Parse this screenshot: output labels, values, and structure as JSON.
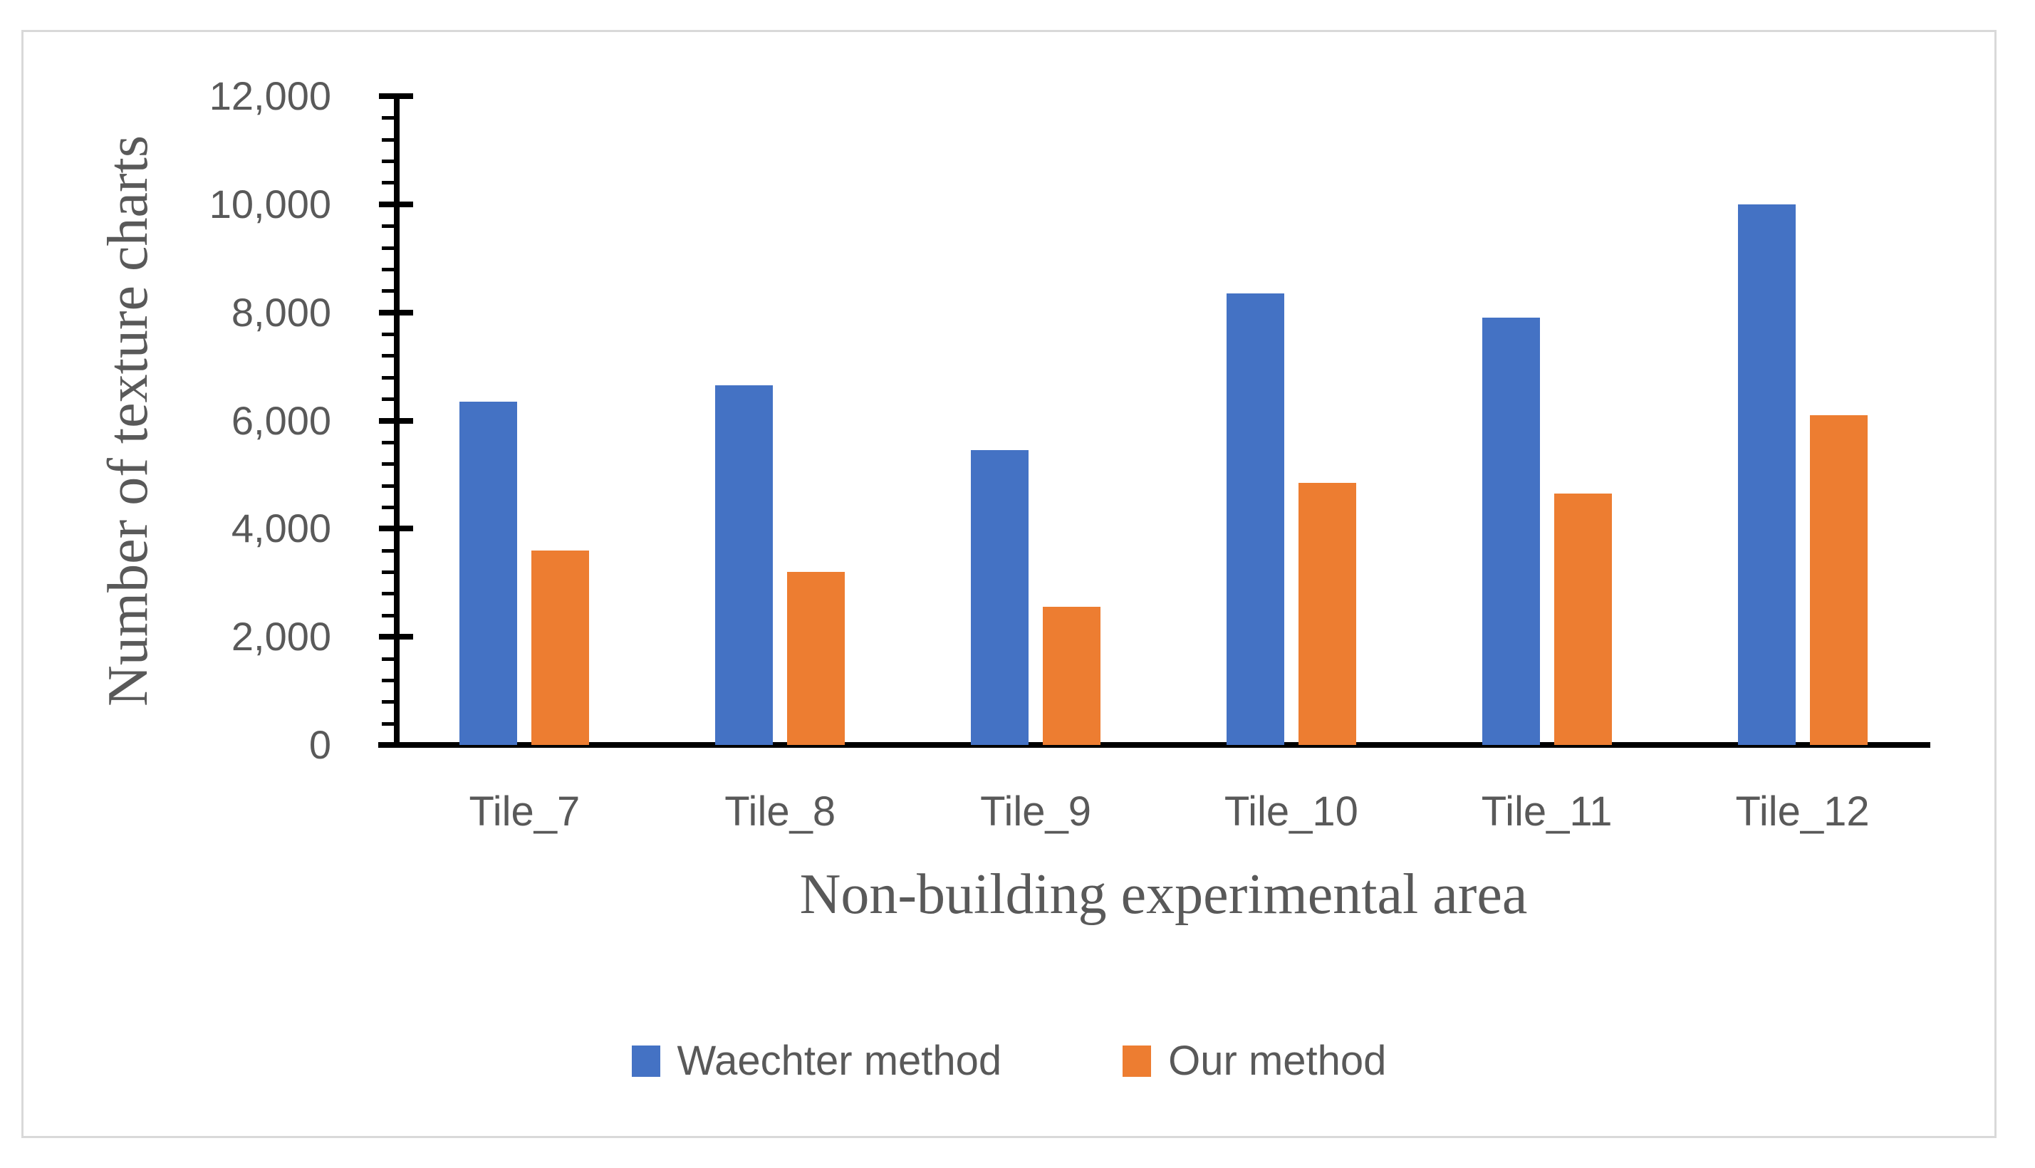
{
  "figure": {
    "background": "#FFFFFF",
    "border_color": "#D9D9D9",
    "text_color": "#595959",
    "axis_color": "#000000"
  },
  "chart_data": {
    "type": "bar",
    "title": "",
    "categories": [
      "Tile_7",
      "Tile_8",
      "Tile_9",
      "Tile_10",
      "Tile_11",
      "Tile_12"
    ],
    "series": [
      {
        "name": "Waechter method",
        "color": "#4472C4",
        "values": [
          6350,
          6650,
          5450,
          8350,
          7900,
          10000
        ]
      },
      {
        "name": "Our method",
        "color": "#ED7D31",
        "values": [
          3600,
          3200,
          2550,
          4850,
          4650,
          6100
        ]
      }
    ],
    "xlabel": "Non-building experimental area",
    "ylabel": "Number of  texture charts",
    "ylim": [
      0,
      12000
    ],
    "y_major_step": 2000,
    "y_minor_step": 400,
    "y_tick_labels": [
      "0",
      "2,000",
      "4,000",
      "6,000",
      "8,000",
      "10,000",
      "12,000"
    ],
    "grid": false,
    "legend_position": "bottom-center"
  }
}
